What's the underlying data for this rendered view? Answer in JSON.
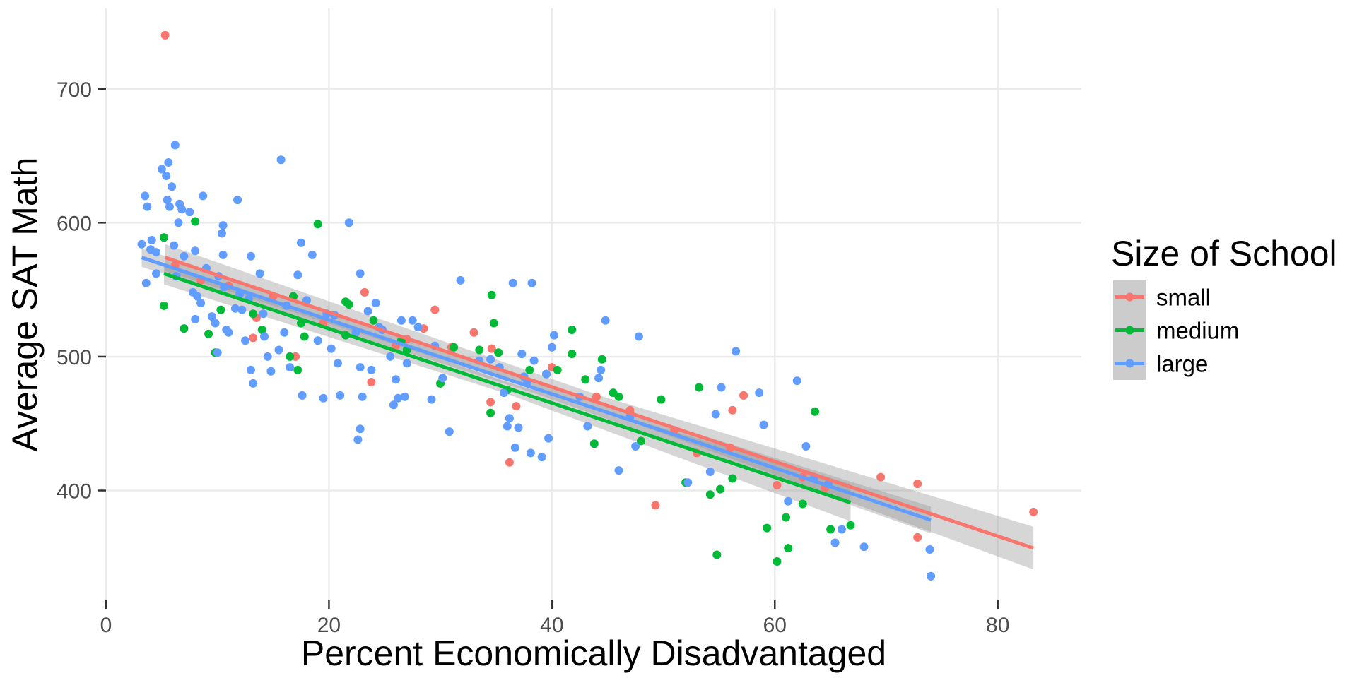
{
  "chart_data": {
    "type": "scatter",
    "title": "",
    "xlabel": "Percent Economically Disadvantaged",
    "ylabel": "Average SAT Math",
    "xlim": [
      0,
      87.5
    ],
    "ylim": [
      318,
      760
    ],
    "xticks": [
      0,
      20,
      40,
      60,
      80
    ],
    "xtick_labels": [
      "0",
      "20",
      "40",
      "60",
      "80"
    ],
    "yticks": [
      400,
      500,
      600,
      700
    ],
    "ytick_labels": [
      "400",
      "500",
      "600",
      "700"
    ],
    "grid": true,
    "legend": {
      "title": "Size of School",
      "position": "right",
      "entries": [
        "small",
        "medium",
        "large"
      ]
    },
    "colors": {
      "small": "#F8766D",
      "medium": "#00BA38",
      "large": "#619CFF",
      "band": "#999999"
    },
    "series": [
      {
        "name": "small",
        "color": "#F8766D",
        "points": [
          [
            5.3,
            740
          ],
          [
            11,
            553
          ],
          [
            13.5,
            529
          ],
          [
            13.2,
            514
          ],
          [
            17,
            500
          ],
          [
            23.2,
            548
          ],
          [
            23.8,
            481
          ],
          [
            26,
            508
          ],
          [
            28.5,
            521
          ],
          [
            29.5,
            535
          ],
          [
            33,
            518
          ],
          [
            34.5,
            466
          ],
          [
            34.6,
            506
          ],
          [
            36.2,
            421
          ],
          [
            36.8,
            463
          ],
          [
            49.3,
            389
          ],
          [
            53,
            428
          ],
          [
            56.2,
            460
          ],
          [
            57.2,
            471
          ],
          [
            60.2,
            404
          ],
          [
            62.5,
            410
          ],
          [
            69.5,
            410
          ],
          [
            72.8,
            405
          ],
          [
            72.8,
            365
          ],
          [
            83.2,
            384
          ],
          [
            6.2,
            568
          ],
          [
            8.5,
            557
          ],
          [
            15,
            545
          ],
          [
            19.5,
            525
          ],
          [
            27,
            513
          ],
          [
            31,
            507
          ],
          [
            40,
            492
          ],
          [
            44,
            470
          ],
          [
            47,
            460
          ],
          [
            51,
            445
          ],
          [
            56,
            432
          ],
          [
            64.5,
            402
          ]
        ],
        "fit": {
          "x": [
            5.3,
            83.2
          ],
          "y": [
            574,
            357
          ],
          "ci_half_width": [
            10,
            16
          ]
        }
      },
      {
        "name": "medium",
        "color": "#00BA38",
        "points": [
          [
            5.2,
            589
          ],
          [
            5.2,
            538
          ],
          [
            7,
            521
          ],
          [
            8,
            601
          ],
          [
            9.2,
            517
          ],
          [
            9.8,
            503
          ],
          [
            10.3,
            535
          ],
          [
            13.2,
            532
          ],
          [
            14,
            520
          ],
          [
            16.5,
            500
          ],
          [
            16.8,
            545
          ],
          [
            17.2,
            490
          ],
          [
            17.5,
            525
          ],
          [
            17.8,
            515
          ],
          [
            19,
            599
          ],
          [
            21.5,
            516
          ],
          [
            21.8,
            539
          ],
          [
            24,
            527
          ],
          [
            27,
            505
          ],
          [
            30,
            480
          ],
          [
            31.2,
            507
          ],
          [
            34.6,
            546
          ],
          [
            34.8,
            525
          ],
          [
            34.5,
            458
          ],
          [
            35.2,
            503
          ],
          [
            36,
            475
          ],
          [
            39.5,
            487
          ],
          [
            40.5,
            490
          ],
          [
            41.8,
            502
          ],
          [
            41.8,
            520
          ],
          [
            43,
            483
          ],
          [
            43.8,
            435
          ],
          [
            44.5,
            498
          ],
          [
            45.5,
            473
          ],
          [
            48,
            437
          ],
          [
            49.8,
            468
          ],
          [
            52,
            406
          ],
          [
            53.2,
            477
          ],
          [
            54.2,
            397
          ],
          [
            54.8,
            352
          ],
          [
            55.1,
            401
          ],
          [
            56.2,
            409
          ],
          [
            59.3,
            372
          ],
          [
            60.2,
            347
          ],
          [
            61,
            380
          ],
          [
            61.2,
            357
          ],
          [
            62.5,
            390
          ],
          [
            63.6,
            459
          ],
          [
            65,
            371
          ],
          [
            66.8,
            374
          ],
          [
            21.5,
            541
          ],
          [
            26.5,
            512
          ],
          [
            33.5,
            505
          ],
          [
            38,
            490
          ],
          [
            46,
            470
          ]
        ],
        "fit": {
          "x": [
            5.2,
            66.8
          ],
          "y": [
            562,
            391
          ],
          "ci_half_width": [
            8,
            14
          ]
        }
      },
      {
        "name": "large",
        "color": "#619CFF",
        "points": [
          [
            3.2,
            584
          ],
          [
            3.5,
            620
          ],
          [
            3.6,
            555
          ],
          [
            3.7,
            612
          ],
          [
            4.0,
            580
          ],
          [
            4.1,
            587
          ],
          [
            4.5,
            578
          ],
          [
            4.5,
            562
          ],
          [
            5.0,
            640
          ],
          [
            5.4,
            635
          ],
          [
            5.6,
            645
          ],
          [
            5.5,
            617
          ],
          [
            5.7,
            612
          ],
          [
            5.9,
            627
          ],
          [
            6.1,
            583
          ],
          [
            6.2,
            658
          ],
          [
            6.3,
            560
          ],
          [
            6.5,
            600
          ],
          [
            6.6,
            614
          ],
          [
            6.8,
            610
          ],
          [
            7.0,
            575
          ],
          [
            7.5,
            608
          ],
          [
            7.8,
            548
          ],
          [
            8.0,
            528
          ],
          [
            8.0,
            579
          ],
          [
            8.2,
            545
          ],
          [
            8.5,
            540
          ],
          [
            8.7,
            620
          ],
          [
            9.0,
            566
          ],
          [
            9.5,
            530
          ],
          [
            9.8,
            525
          ],
          [
            10.0,
            503
          ],
          [
            10.1,
            560
          ],
          [
            10.4,
            592
          ],
          [
            10.5,
            598
          ],
          [
            10.5,
            576
          ],
          [
            10.6,
            552
          ],
          [
            10.8,
            520
          ],
          [
            11.0,
            518
          ],
          [
            11.6,
            536
          ],
          [
            11.8,
            617
          ],
          [
            12.2,
            535
          ],
          [
            12.5,
            512
          ],
          [
            12.8,
            543
          ],
          [
            13.0,
            490
          ],
          [
            13.0,
            575
          ],
          [
            13.2,
            480
          ],
          [
            13.8,
            562
          ],
          [
            14.1,
            532
          ],
          [
            14.2,
            515
          ],
          [
            14.5,
            500
          ],
          [
            14.8,
            489
          ],
          [
            15.5,
            505
          ],
          [
            15.7,
            647
          ],
          [
            16.0,
            518
          ],
          [
            16.5,
            492
          ],
          [
            17.2,
            561
          ],
          [
            17.5,
            585
          ],
          [
            17.6,
            471
          ],
          [
            18.0,
            542
          ],
          [
            18.5,
            576
          ],
          [
            19.0,
            512
          ],
          [
            19.5,
            469
          ],
          [
            20.2,
            506
          ],
          [
            20.5,
            531
          ],
          [
            20.8,
            495
          ],
          [
            21.0,
            471
          ],
          [
            21.8,
            600
          ],
          [
            22.4,
            518
          ],
          [
            22.8,
            562
          ],
          [
            22.8,
            492
          ],
          [
            22.8,
            446
          ],
          [
            22.6,
            438
          ],
          [
            23.0,
            470
          ],
          [
            23.5,
            534
          ],
          [
            23.8,
            490
          ],
          [
            24.2,
            540
          ],
          [
            24.8,
            520
          ],
          [
            25.5,
            500
          ],
          [
            25.8,
            464
          ],
          [
            26.0,
            483
          ],
          [
            26.2,
            469
          ],
          [
            26.5,
            527
          ],
          [
            26.8,
            470
          ],
          [
            27.0,
            495
          ],
          [
            27.5,
            527
          ],
          [
            28.0,
            522
          ],
          [
            29.2,
            468
          ],
          [
            30.2,
            484
          ],
          [
            30.8,
            444
          ],
          [
            31.8,
            557
          ],
          [
            34.5,
            498
          ],
          [
            35.3,
            492
          ],
          [
            35.7,
            473
          ],
          [
            36.0,
            448
          ],
          [
            36.2,
            454
          ],
          [
            36.5,
            555
          ],
          [
            36.7,
            432
          ],
          [
            37.0,
            447
          ],
          [
            37.3,
            502
          ],
          [
            37.8,
            481
          ],
          [
            38.1,
            428
          ],
          [
            38.2,
            555
          ],
          [
            38.4,
            497
          ],
          [
            39.1,
            425
          ],
          [
            39.5,
            487
          ],
          [
            39.7,
            439
          ],
          [
            40.0,
            507
          ],
          [
            40.2,
            516
          ],
          [
            43.2,
            448
          ],
          [
            44.2,
            484
          ],
          [
            44.4,
            490
          ],
          [
            44.8,
            527
          ],
          [
            46.0,
            415
          ],
          [
            47.5,
            433
          ],
          [
            47.8,
            515
          ],
          [
            52.2,
            406
          ],
          [
            54.2,
            414
          ],
          [
            54.7,
            457
          ],
          [
            55.2,
            477
          ],
          [
            56.5,
            504
          ],
          [
            58.6,
            473
          ],
          [
            59.0,
            449
          ],
          [
            61.2,
            392
          ],
          [
            62.0,
            482
          ],
          [
            62.8,
            433
          ],
          [
            63.5,
            409
          ],
          [
            64.8,
            405
          ],
          [
            65.4,
            361
          ],
          [
            66.0,
            371
          ],
          [
            68.0,
            358
          ],
          [
            73.9,
            356
          ],
          [
            74.0,
            336
          ],
          [
            12.0,
            547
          ],
          [
            16.2,
            538
          ],
          [
            19.8,
            532
          ],
          [
            24.5,
            522
          ],
          [
            29.5,
            508
          ],
          [
            33.5,
            497
          ],
          [
            37.5,
            485
          ],
          [
            42.5,
            470
          ],
          [
            47.0,
            455
          ]
        ],
        "fit": {
          "x": [
            3.2,
            74.0
          ],
          "y": [
            574,
            378
          ],
          "ci_half_width": [
            7,
            10
          ]
        }
      }
    ]
  }
}
